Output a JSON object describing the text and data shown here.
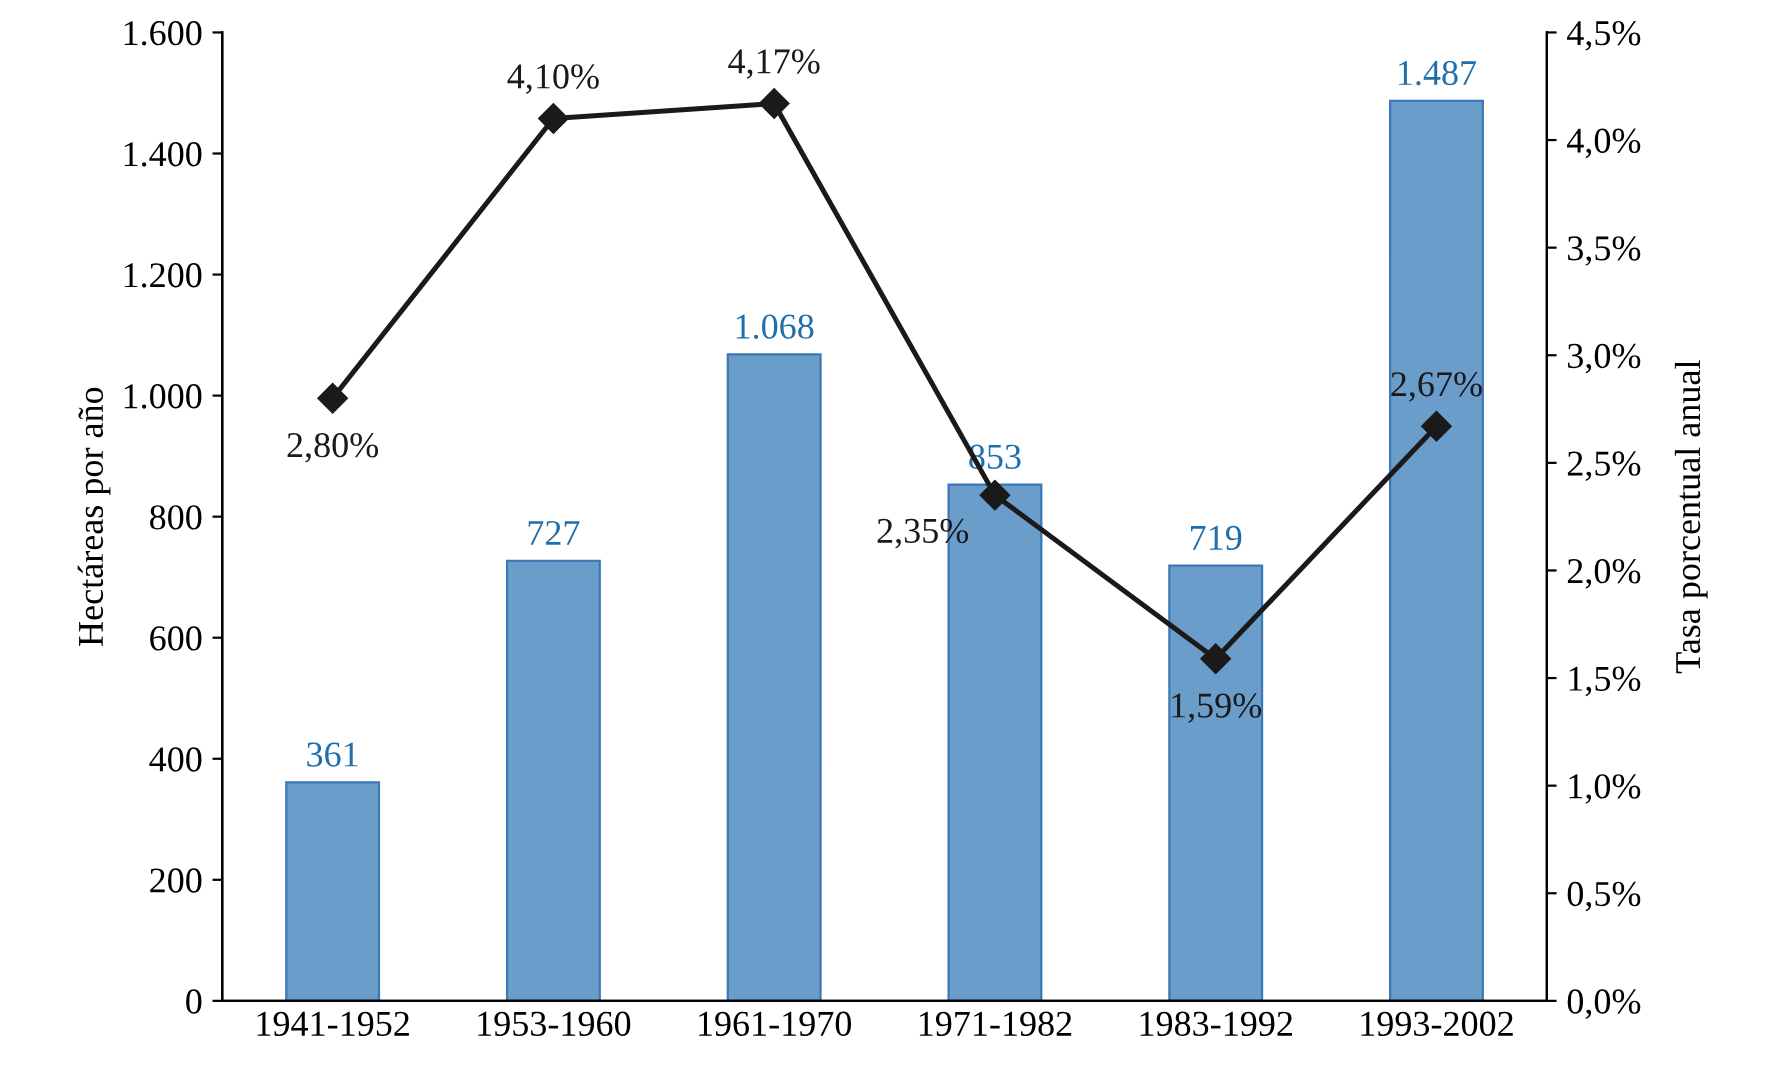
{
  "chart_data": {
    "type": "bar",
    "ylabel": "Hectáreas por año",
    "y2label": "Tasa porcentual anual",
    "categories": [
      "1941-1952",
      "1953-1960",
      "1961-1970",
      "1971-1982",
      "1983-1992",
      "1993-2002"
    ],
    "series": [
      {
        "color": "#6b9dcb",
        "values": [
          361,
          727,
          1068,
          853,
          719,
          1487
        ],
        "value_labels": [
          "361",
          "727",
          "1.068",
          "853",
          "719",
          "1.487"
        ]
      },
      {
        "type": "line",
        "axis": "y2",
        "color": "#1a1a1a",
        "marker": "diamond",
        "line_style": "solid",
        "values": [
          2.8,
          4.1,
          4.17,
          2.35,
          1.59,
          2.67
        ],
        "value_labels": [
          "2,80%",
          "4,10%",
          "4,17%",
          "2,35%",
          "1,59%",
          "2,67%"
        ]
      }
    ],
    "ylim": [
      0,
      1600
    ],
    "yticks": [
      0,
      200,
      400,
      {
        "value": 600,
        "label": "600"
      },
      {
        "value": 800,
        "label": "800"
      },
      {
        "value": 1000,
        "label": "1.000"
      },
      {
        "value": 1200,
        "label": "1.200"
      },
      {
        "value": 1400,
        "label": "1.400"
      },
      {
        "value": 1600,
        "label": "1.600"
      }
    ],
    "y2lim": [
      0,
      4.5
    ],
    "y2ticks": [
      {
        "value": 0,
        "label": "0,0%"
      },
      {
        "value": 0.5,
        "label": "0,5%"
      },
      {
        "value": 1,
        "label": "1,0%"
      },
      {
        "value": 1.5,
        "label": "1,5%"
      },
      {
        "value": 2,
        "label": "2,0%"
      },
      {
        "value": 2.5,
        "label": "2,5%"
      },
      {
        "value": 3,
        "label": "3,0%"
      },
      {
        "value": 3.5,
        "label": "3,5%"
      },
      {
        "value": 4,
        "label": "4,0%"
      },
      {
        "value": 4.5,
        "label": "4,5%"
      }
    ],
    "grid": false
  }
}
